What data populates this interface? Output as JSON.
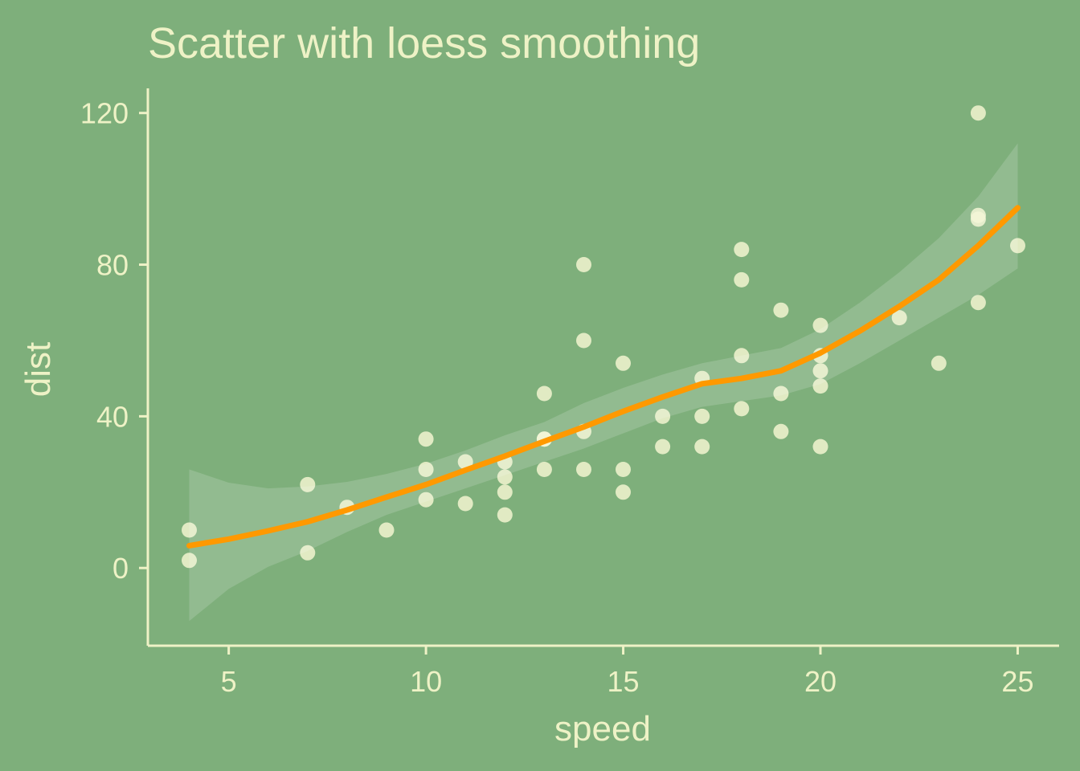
{
  "colors": {
    "background": "#7eaf7b",
    "foreground": "#eef2c6",
    "points": "#f2f4d0",
    "smooth_line": "#ff9900",
    "ribbon": "#ffffff"
  },
  "chart_data": {
    "type": "scatter",
    "title": "Scatter with loess smoothing",
    "xlabel": "speed",
    "ylabel": "dist",
    "xlim": [
      2.95,
      26.05
    ],
    "ylim": [
      -20.5,
      126.5
    ],
    "x_ticks": [
      5,
      10,
      15,
      20,
      25
    ],
    "y_ticks": [
      0,
      40,
      80,
      120
    ],
    "grid": false,
    "legend": "none",
    "points": [
      [
        4,
        2
      ],
      [
        4,
        10
      ],
      [
        7,
        4
      ],
      [
        7,
        22
      ],
      [
        8,
        16
      ],
      [
        9,
        10
      ],
      [
        10,
        18
      ],
      [
        10,
        26
      ],
      [
        10,
        34
      ],
      [
        11,
        17
      ],
      [
        11,
        28
      ],
      [
        12,
        14
      ],
      [
        12,
        20
      ],
      [
        12,
        24
      ],
      [
        12,
        28
      ],
      [
        13,
        26
      ],
      [
        13,
        34
      ],
      [
        13,
        34
      ],
      [
        13,
        46
      ],
      [
        14,
        26
      ],
      [
        14,
        36
      ],
      [
        14,
        60
      ],
      [
        14,
        80
      ],
      [
        15,
        20
      ],
      [
        15,
        26
      ],
      [
        15,
        54
      ],
      [
        16,
        32
      ],
      [
        16,
        40
      ],
      [
        17,
        32
      ],
      [
        17,
        40
      ],
      [
        17,
        50
      ],
      [
        18,
        42
      ],
      [
        18,
        56
      ],
      [
        18,
        76
      ],
      [
        18,
        84
      ],
      [
        19,
        36
      ],
      [
        19,
        46
      ],
      [
        19,
        68
      ],
      [
        20,
        32
      ],
      [
        20,
        48
      ],
      [
        20,
        52
      ],
      [
        20,
        56
      ],
      [
        20,
        64
      ],
      [
        22,
        66
      ],
      [
        23,
        54
      ],
      [
        24,
        70
      ],
      [
        24,
        92
      ],
      [
        24,
        93
      ],
      [
        24,
        120
      ],
      [
        25,
        85
      ]
    ],
    "smooth": {
      "method": "loess",
      "x": [
        4,
        5,
        6,
        7,
        8,
        9,
        10,
        11,
        12,
        13,
        14,
        15,
        16,
        17,
        18,
        19,
        20,
        21,
        22,
        23,
        24,
        25
      ],
      "y": [
        5.9,
        7.6,
        9.8,
        12.2,
        15.3,
        18.7,
        22.0,
        25.8,
        29.5,
        33.4,
        37.2,
        41.3,
        45.1,
        48.6,
        50.0,
        52.0,
        56.7,
        62.5,
        69.0,
        76.0,
        85.0,
        95.0
      ],
      "lower": [
        -14,
        -5.5,
        0.3,
        4.5,
        9.5,
        14.0,
        17.5,
        21.0,
        24.5,
        28.0,
        31.5,
        35.5,
        39.5,
        42.5,
        44.0,
        45.5,
        48.5,
        54.0,
        60.0,
        66.0,
        72.0,
        79.0
      ],
      "upper": [
        26,
        22.5,
        21.0,
        21.5,
        22.7,
        24.8,
        27.5,
        31.0,
        35.0,
        38.5,
        43.5,
        47.5,
        51.0,
        54.0,
        56.0,
        58.0,
        63.0,
        70.0,
        78.0,
        87.0,
        98.0,
        112.0
      ]
    }
  }
}
